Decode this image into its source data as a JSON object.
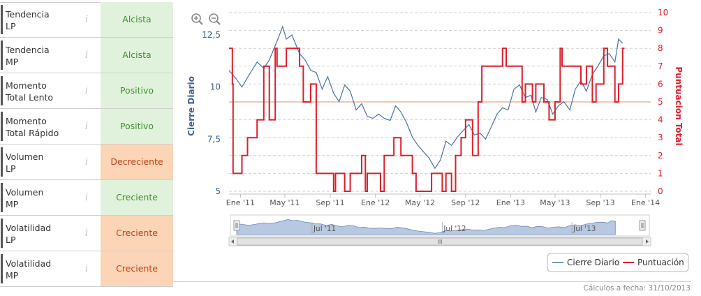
{
  "indicators": [
    {
      "name": "Tendencia\nLP",
      "info": "i",
      "value": "Alcista",
      "status": "green"
    },
    {
      "name": "Tendencia\nMP",
      "info": "i",
      "value": "Alcista",
      "status": "green"
    },
    {
      "name": "Momento\nTotal Lento",
      "info": "i",
      "value": "Positivo",
      "status": "green"
    },
    {
      "name": "Momento\nTotal Rápido",
      "info": "i",
      "value": "Positivo",
      "status": "green"
    },
    {
      "name": "Volumen\nLP",
      "info": "i",
      "value": "Decreciente",
      "status": "orange"
    },
    {
      "name": "Volumen\nMP",
      "info": "i",
      "value": "Creciente",
      "status": "green"
    },
    {
      "name": "Volatilidad\nLP",
      "info": "i",
      "value": "Creciente",
      "status": "orange"
    },
    {
      "name": "Volatilidad\nMP",
      "info": "i",
      "value": "Creciente",
      "status": "orange"
    }
  ],
  "footer": "Cálculos a fecha: 31/10/2013",
  "colors": {
    "price": "#4a72a6",
    "score": "#dd1e2b",
    "threshold": "#e8b895",
    "navigator_fill": "#b7c8e0"
  },
  "chart_data": {
    "type": "line",
    "xlabel": "",
    "ylabel_left": "Cierre Diario",
    "ylabel_right": "Puntuacion Total",
    "y_left_ticks": [
      "5",
      "7,5",
      "10",
      "12,5"
    ],
    "y_left_range": [
      5,
      12.5
    ],
    "y_right_ticks": [
      "0",
      "1",
      "2",
      "3",
      "4",
      "5",
      "6",
      "7",
      "8",
      "9",
      "10"
    ],
    "y_right_range": [
      0,
      10
    ],
    "x_ticks": [
      "Ene '11",
      "May '11",
      "Sep '11",
      "Ene '12",
      "May '12",
      "Sep '12",
      "Ene '13",
      "May '13",
      "Sep '13",
      "Ene '14"
    ],
    "x_range": [
      "2010-12-01",
      "2014-01-15"
    ],
    "navigator_labels": [
      "Jul '11",
      "Jul '12",
      "Jul '13"
    ],
    "navigator_grip": "III",
    "threshold": 5,
    "legend": [
      "Cierre Diario",
      "Puntuación"
    ],
    "legend_position": "bottom-right",
    "grid": true,
    "series": [
      {
        "name": "Cierre Diario",
        "axis": "left",
        "dates": [
          "2010-12-01",
          "2010-12-20",
          "2011-01-05",
          "2011-01-25",
          "2011-02-15",
          "2011-03-05",
          "2011-03-20",
          "2011-04-10",
          "2011-04-25",
          "2011-05-05",
          "2011-05-20",
          "2011-06-10",
          "2011-06-25",
          "2011-07-10",
          "2011-07-25",
          "2011-08-10",
          "2011-08-25",
          "2011-09-10",
          "2011-09-25",
          "2011-10-10",
          "2011-10-25",
          "2011-11-10",
          "2011-11-25",
          "2011-12-10",
          "2011-12-25",
          "2012-01-10",
          "2012-01-25",
          "2012-02-10",
          "2012-02-25",
          "2012-03-10",
          "2012-03-25",
          "2012-04-10",
          "2012-04-25",
          "2012-05-10",
          "2012-05-25",
          "2012-06-10",
          "2012-06-25",
          "2012-07-10",
          "2012-07-25",
          "2012-08-10",
          "2012-08-25",
          "2012-09-10",
          "2012-09-25",
          "2012-10-10",
          "2012-10-25",
          "2012-11-10",
          "2012-11-25",
          "2012-12-10",
          "2012-12-25",
          "2013-01-10",
          "2013-01-25",
          "2013-02-10",
          "2013-02-25",
          "2013-03-10",
          "2013-03-25",
          "2013-04-10",
          "2013-04-25",
          "2013-05-10",
          "2013-05-25",
          "2013-06-10",
          "2013-06-25",
          "2013-07-10",
          "2013-07-25",
          "2013-08-10",
          "2013-08-25",
          "2013-09-10",
          "2013-09-25",
          "2013-10-10",
          "2013-10-20",
          "2013-10-31"
        ],
        "values": [
          10.8,
          10.4,
          10.0,
          10.6,
          11.2,
          10.9,
          11.3,
          12.2,
          12.9,
          12.3,
          12.5,
          11.6,
          11.3,
          10.8,
          10.7,
          9.9,
          10.5,
          9.7,
          9.3,
          10.1,
          9.8,
          8.9,
          9.2,
          8.6,
          8.5,
          8.7,
          8.5,
          8.4,
          9.1,
          8.8,
          8.3,
          7.6,
          7.2,
          6.9,
          6.6,
          6.1,
          6.5,
          7.4,
          7.2,
          7.6,
          7.9,
          8.2,
          7.7,
          7.8,
          7.5,
          8.1,
          8.7,
          9.0,
          8.9,
          9.9,
          10.1,
          9.5,
          9.6,
          8.8,
          9.5,
          9.4,
          8.7,
          9.1,
          9.3,
          8.9,
          9.9,
          10.3,
          9.8,
          10.6,
          11.0,
          11.5,
          11.6,
          11.2,
          12.3,
          12.1
        ]
      },
      {
        "name": "Puntuación",
        "axis": "right",
        "dates": [
          "2010-12-01",
          "2010-12-10",
          "2010-12-12",
          "2011-01-05",
          "2011-01-20",
          "2011-02-15",
          "2011-03-05",
          "2011-03-20",
          "2011-04-05",
          "2011-04-10",
          "2011-05-05",
          "2011-06-10",
          "2011-06-20",
          "2011-07-10",
          "2011-07-25",
          "2011-08-20",
          "2011-09-10",
          "2011-09-15",
          "2011-10-10",
          "2011-10-25",
          "2011-11-10",
          "2011-11-25",
          "2011-12-05",
          "2011-12-10",
          "2012-01-15",
          "2012-01-25",
          "2012-02-10",
          "2012-02-20",
          "2012-03-10",
          "2012-04-10",
          "2012-04-20",
          "2012-05-20",
          "2012-06-01",
          "2012-06-30",
          "2012-07-10",
          "2012-07-25",
          "2012-08-05",
          "2012-08-20",
          "2012-09-01",
          "2012-09-20",
          "2012-10-05",
          "2012-10-15",
          "2012-11-10",
          "2012-11-20",
          "2012-12-10",
          "2012-12-20",
          "2013-01-10",
          "2013-02-01",
          "2013-02-10",
          "2013-03-01",
          "2013-03-10",
          "2013-04-01",
          "2013-04-15",
          "2013-05-01",
          "2013-05-15",
          "2013-05-20",
          "2013-06-10",
          "2013-07-10",
          "2013-07-25",
          "2013-08-10",
          "2013-08-20",
          "2013-09-10",
          "2013-09-20",
          "2013-10-10",
          "2013-10-20",
          "2013-10-31"
        ],
        "values": [
          8,
          6,
          1,
          2,
          3,
          4,
          7,
          4,
          8,
          7,
          8,
          7,
          5,
          6,
          1,
          1,
          0,
          1,
          0,
          1,
          1,
          2,
          0,
          1,
          0,
          2,
          2,
          3,
          2,
          1,
          0,
          0,
          1,
          0,
          1,
          0,
          2,
          3,
          4,
          2,
          5,
          7,
          7,
          7,
          8,
          7,
          7,
          5,
          6,
          5,
          6,
          5,
          4,
          5,
          8,
          7,
          7,
          6,
          7,
          5,
          6,
          8,
          7,
          5,
          6,
          8
        ]
      }
    ]
  }
}
